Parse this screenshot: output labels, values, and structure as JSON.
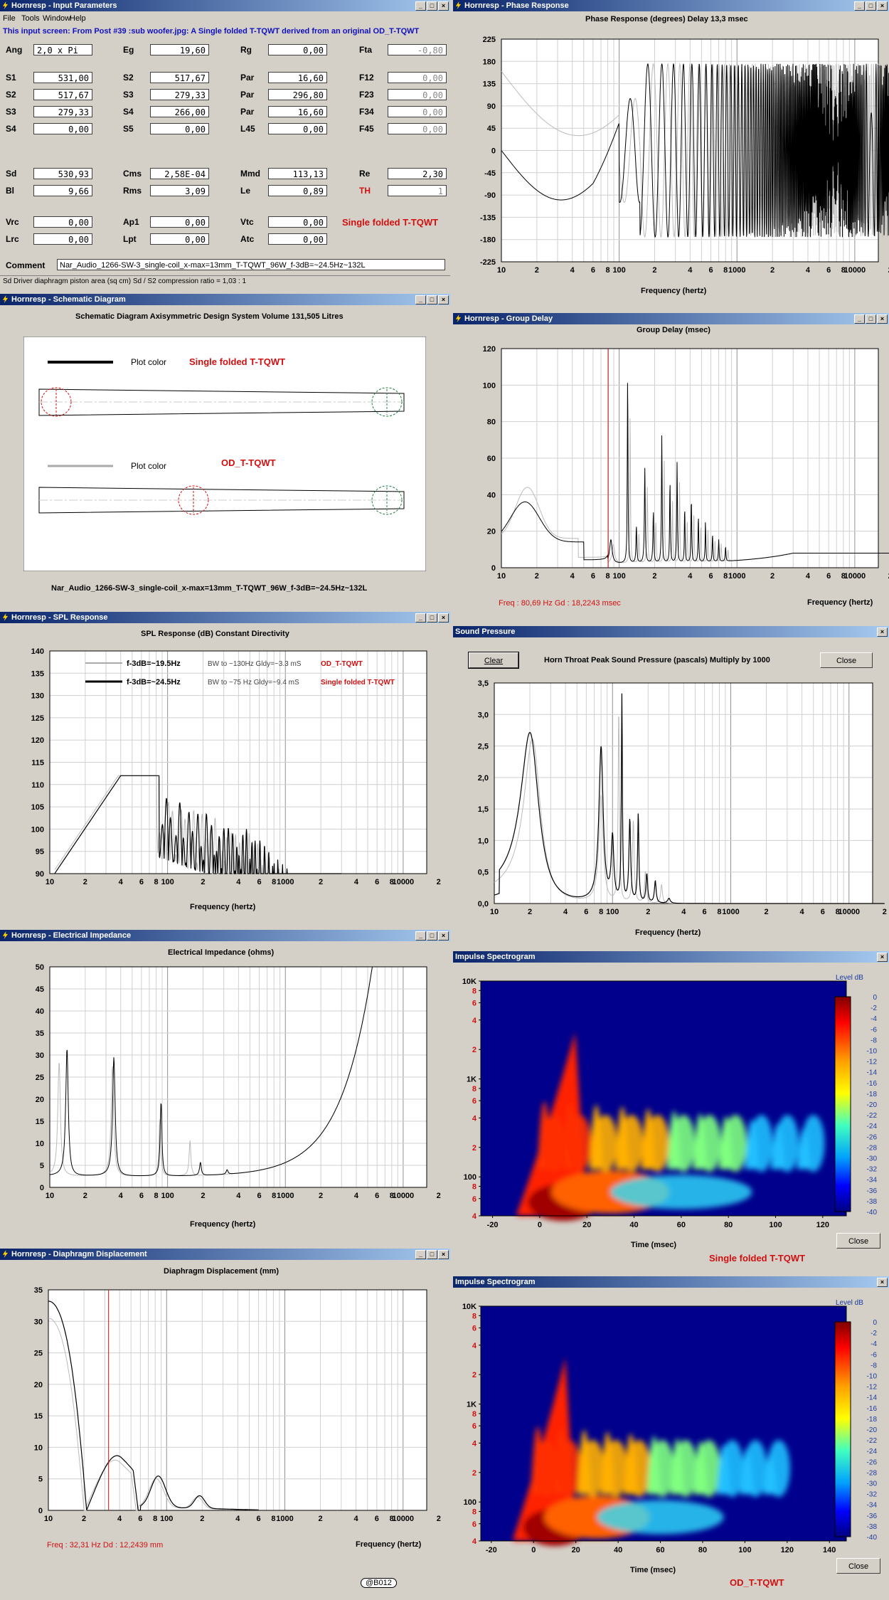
{
  "input": {
    "title": "Hornresp - Input Parameters",
    "menu": [
      "File",
      "Tools",
      "Window",
      "Help"
    ],
    "note": "This input screen: From Post  #39 :sub woofer.jpg: A Single folded T-TQWT derived from an original OD_T-TQWT",
    "rows": [
      [
        [
          "Ang",
          "2,0 x Pi"
        ],
        [
          "Eg",
          "19,60"
        ],
        [
          "Rg",
          "0,00"
        ],
        [
          "Fta",
          "-0,80"
        ]
      ],
      [
        [
          "S1",
          "531,00"
        ],
        [
          "S2",
          "517,67"
        ],
        [
          "Par",
          "16,60"
        ],
        [
          "F12",
          "0,00"
        ]
      ],
      [
        [
          "S2",
          "517,67"
        ],
        [
          "S3",
          "279,33"
        ],
        [
          "Par",
          "296,80"
        ],
        [
          "F23",
          "0,00"
        ]
      ],
      [
        [
          "S3",
          "279,33"
        ],
        [
          "S4",
          "266,00"
        ],
        [
          "Par",
          "16,60"
        ],
        [
          "F34",
          "0,00"
        ]
      ],
      [
        [
          "S4",
          "0,00"
        ],
        [
          "S5",
          "0,00"
        ],
        [
          "L45",
          "0,00"
        ],
        [
          "F45",
          "0,00"
        ]
      ],
      [
        [
          "Sd",
          "530,93"
        ],
        [
          "Cms",
          "2,58E-04"
        ],
        [
          "Mmd",
          "113,13"
        ],
        [
          "Re",
          "2,30"
        ]
      ],
      [
        [
          "Bl",
          "9,66"
        ],
        [
          "Rms",
          "3,09"
        ],
        [
          "Le",
          "0,89"
        ],
        [
          "TH",
          "1"
        ]
      ],
      [
        [
          "Vrc",
          "0,00"
        ],
        [
          "Ap1",
          "0,00"
        ],
        [
          "Vtc",
          "0,00"
        ]
      ],
      [
        [
          "Lrc",
          "0,00"
        ],
        [
          "Lpt",
          "0,00"
        ],
        [
          "Atc",
          "0,00"
        ]
      ]
    ],
    "red_label": "Single folded T-TQWT",
    "comment_label": "Comment",
    "comment": "Nar_Audio_1266-SW-3_single-coil_x-max=13mm_T-TQWT_96W_f-3dB=~24.5Hz~132L",
    "status": "Sd   Driver diaphragm piston area  (sq cm)    Sd / S2 compression ratio = 1,03 : 1"
  },
  "schematic": {
    "title": "Hornresp - Schematic Diagram",
    "header": "Schematic Diagram    Axisymmetric Design    System Volume 131,505 Litres",
    "plot_color": "Plot color",
    "name1": "Single folded T-TQWT",
    "name2": "OD_T-TQWT",
    "footer": "Nar_Audio_1266-SW-3_single-coil_x-max=13mm_T-TQWT_96W_f-3dB=~24.5Hz~132L"
  },
  "spl": {
    "title": "Hornresp - SPL Response",
    "header": "SPL Response (dB)    Constant Directivity",
    "legend": [
      [
        "f-3dB=~19.5Hz",
        "BW to ~130Hz Gldy=~3.3 mS",
        "OD_T-TQWT"
      ],
      [
        "f-3dB=~24.5Hz",
        "BW to ~75 Hz Gldy=~9.4 mS",
        "Single folded T-TQWT"
      ]
    ],
    "xlabel": "Frequency (hertz)",
    "xticks": [
      "10",
      "2",
      "4",
      "6",
      "8",
      "100",
      "2",
      "4",
      "6",
      "8",
      "1000",
      "2",
      "4",
      "6",
      "8",
      "10000",
      "2"
    ],
    "yticks": [
      "140",
      "135",
      "130",
      "125",
      "120",
      "115",
      "110",
      "105",
      "100",
      "95",
      "90"
    ]
  },
  "impedance": {
    "title": "Hornresp - Electrical Impedance",
    "header": "Electrical Impedance (ohms)",
    "xlabel": "Frequency (hertz)",
    "xticks": [
      "10",
      "2",
      "4",
      "6",
      "8",
      "100",
      "2",
      "4",
      "6",
      "8",
      "1000",
      "2",
      "4",
      "6",
      "8",
      "10000",
      "2"
    ],
    "yticks": [
      "50",
      "45",
      "40",
      "35",
      "30",
      "25",
      "20",
      "15",
      "10",
      "5",
      "0"
    ]
  },
  "displacement": {
    "title": "Hornresp - Diaphragm Displacement",
    "header": "Diaphragm Displacement (mm)",
    "xlabel": "Frequency (hertz)",
    "readout": "Freq : 32,31 Hz     Dd : 12,2439 mm",
    "xticks": [
      "10",
      "2",
      "4",
      "6",
      "8",
      "100",
      "2",
      "4",
      "6",
      "8",
      "1000",
      "2",
      "4",
      "6",
      "8",
      "10000",
      "2"
    ],
    "yticks": [
      "35",
      "30",
      "25",
      "20",
      "15",
      "10",
      "5",
      "0"
    ]
  },
  "phase": {
    "title": "Hornresp - Phase Response",
    "header": "Phase Response (degrees)    Delay 13,3 msec",
    "xlabel": "Frequency (hertz)",
    "xticks": [
      "10",
      "2",
      "4",
      "6",
      "8",
      "100",
      "2",
      "4",
      "6",
      "8",
      "1000",
      "2",
      "4",
      "6",
      "8",
      "10000",
      "2"
    ],
    "yticks": [
      "225",
      "180",
      "135",
      "90",
      "45",
      "0",
      "-45",
      "-90",
      "-135",
      "-180",
      "-225"
    ]
  },
  "group": {
    "title": "Hornresp - Group Delay",
    "header": "Group Delay (msec)",
    "xlabel": "Frequency (hertz)",
    "readout": "Freq : 80,69 Hz     Gd : 18,2243 msec",
    "xticks": [
      "10",
      "2",
      "4",
      "6",
      "8",
      "100",
      "2",
      "4",
      "6",
      "8",
      "1000",
      "2",
      "4",
      "6",
      "8",
      "10000",
      "2"
    ],
    "yticks": [
      "120",
      "100",
      "80",
      "60",
      "40",
      "20",
      "0"
    ]
  },
  "sound": {
    "title": "Sound Pressure",
    "header": "Horn Throat Peak Sound Pressure (pascals)    Multiply by 1000",
    "clear": "Clear",
    "close": "Close",
    "xlabel": "Frequency (hertz)",
    "xticks": [
      "10",
      "2",
      "4",
      "6",
      "8",
      "100",
      "2",
      "4",
      "6",
      "8",
      "1000",
      "2",
      "4",
      "6",
      "8",
      "10000",
      "2"
    ],
    "yticks": [
      "3,5",
      "3,0",
      "2,5",
      "2,0",
      "1,5",
      "1,0",
      "0,5",
      "0,0"
    ]
  },
  "spectro1": {
    "title": "Impulse Spectrogram",
    "xlabel": "Time (msec)",
    "name": "Single folded T-TQWT",
    "close": "Close",
    "xticks": [
      "-20",
      "0",
      "20",
      "40",
      "60",
      "80",
      "100",
      "120"
    ],
    "level": "Level   dB",
    "yticks": [
      "10K",
      "8",
      "6",
      "4",
      "2",
      "1K",
      "8",
      "6",
      "4",
      "2",
      "100",
      "8",
      "6",
      "4"
    ]
  },
  "spectro2": {
    "title": "Impulse Spectrogram",
    "xlabel": "Time (msec)",
    "name": "OD_T-TQWT",
    "close": "Close",
    "xticks": [
      "-20",
      "0",
      "20",
      "40",
      "60",
      "80",
      "100",
      "120",
      "140"
    ],
    "level": "Level   dB",
    "yticks": [
      "10K",
      "8",
      "6",
      "4",
      "2",
      "1K",
      "8",
      "6",
      "4",
      "2",
      "100",
      "8",
      "6",
      "4"
    ]
  },
  "scale": [
    "0",
    "-2",
    "-4",
    "-6",
    "-8",
    "-10",
    "-12",
    "-14",
    "-16",
    "-18",
    "-20",
    "-22",
    "-24",
    "-26",
    "-28",
    "-30",
    "-32",
    "-34",
    "-36",
    "-38",
    "-40"
  ],
  "credit": "@B012",
  "colors": {
    "title_bar": "#0a246a",
    "red": "#d01010",
    "scale_label": "#1a3aa0"
  }
}
